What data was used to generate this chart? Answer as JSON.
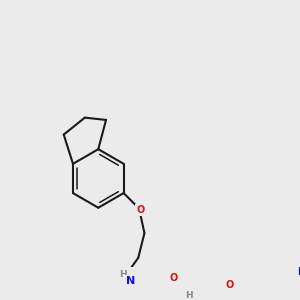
{
  "bg_color": "#ebebeb",
  "bond_color": "#1a1a1a",
  "atom_colors": {
    "N": "#1010dd",
    "O": "#dd1010",
    "S": "#cccc00",
    "H": "#888888",
    "C": "#1a1a1a"
  },
  "bond_lw": 1.5,
  "inner_lw": 1.1,
  "font_size": 7.0,
  "figsize": [
    3.0,
    3.0
  ],
  "dpi": 100
}
